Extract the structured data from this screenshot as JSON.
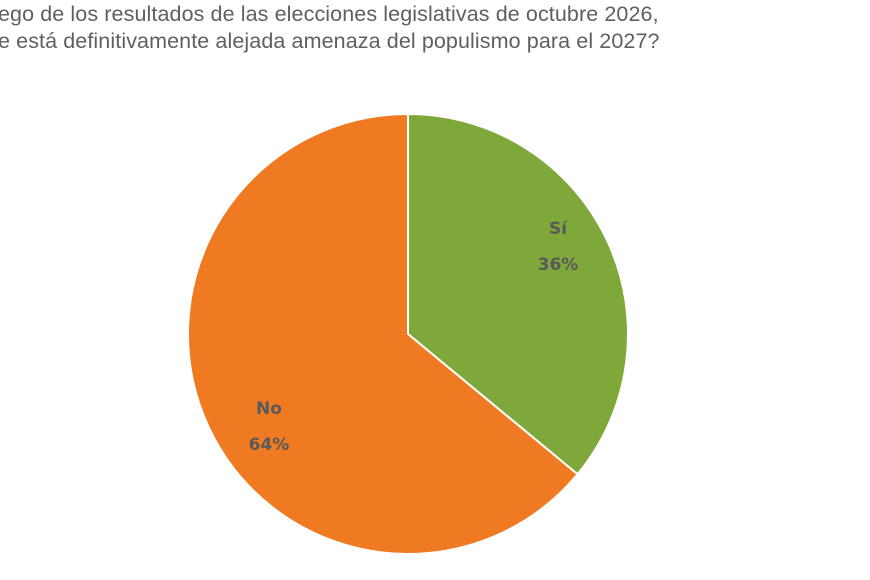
{
  "title": {
    "line1": "ego de los resultados de las elecciones legislativas de octubre 2026,",
    "line2": "e está definitivamente alejada amenaza del populismo para el 2027?"
  },
  "chart_data": {
    "type": "pie",
    "title": "…ego de los resultados de las elecciones legislativas de octubre 2026, …e está definitivamente alejada amenaza del populismo para el 2027?",
    "categories": [
      "Sí",
      "No"
    ],
    "values": [
      36,
      64
    ],
    "unit": "%",
    "colors": [
      "#7ea83a",
      "#f07a22"
    ],
    "start_angle": "12 o'clock",
    "direction": "clockwise",
    "labels": [
      {
        "category": "Sí",
        "text": "Sí",
        "value_text": "36%"
      },
      {
        "category": "No",
        "text": "No",
        "value_text": "64%"
      }
    ],
    "legend": "none (data labels inside slices)"
  },
  "colors": {
    "yes_slice": "#7ea83a",
    "no_slice": "#f07a22",
    "slice_border": "#ffffff",
    "label_text": "#595959",
    "title_text": "#5f5f5f"
  }
}
